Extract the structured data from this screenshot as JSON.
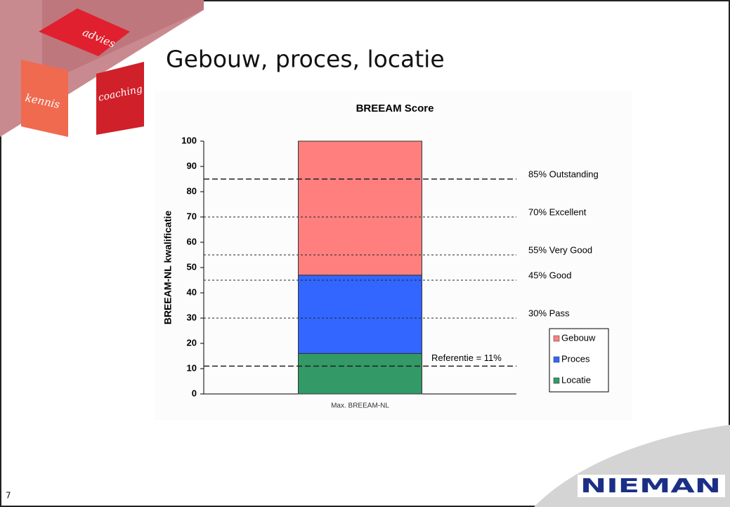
{
  "slide": {
    "title": "Gebouw, proces, locatie",
    "page_number": "7",
    "tiles": [
      "advies",
      "kennis",
      "coaching"
    ],
    "logo": "NIEMAN"
  },
  "chart_data": {
    "type": "stacked_bar",
    "title": "BREEAM Score",
    "y_label": "BREEAM-NL kwalificatie",
    "categories": [
      "Max. BREEAM-NL"
    ],
    "series": [
      {
        "name": "Gebouw",
        "color": "#ff7f7f",
        "values": [
          53
        ]
      },
      {
        "name": "Proces",
        "color": "#3366ff",
        "values": [
          31
        ]
      },
      {
        "name": "Locatie",
        "color": "#339966",
        "values": [
          16
        ]
      }
    ],
    "ylim": [
      0,
      100
    ],
    "yticks": [
      0,
      10,
      20,
      30,
      40,
      50,
      60,
      70,
      80,
      90,
      100
    ],
    "reference_lines": [
      {
        "value": 85,
        "label": "85% Outstanding",
        "emphasis": true
      },
      {
        "value": 70,
        "label": "70%   Excellent",
        "emphasis": false
      },
      {
        "value": 55,
        "label": "55%   Very Good",
        "emphasis": false
      },
      {
        "value": 45,
        "label": "45%   Good",
        "emphasis": false
      },
      {
        "value": 30,
        "label": "30%   Pass",
        "emphasis": false
      },
      {
        "value": 11,
        "label": "Referentie = 11%",
        "emphasis": true
      }
    ],
    "legend": "right"
  }
}
